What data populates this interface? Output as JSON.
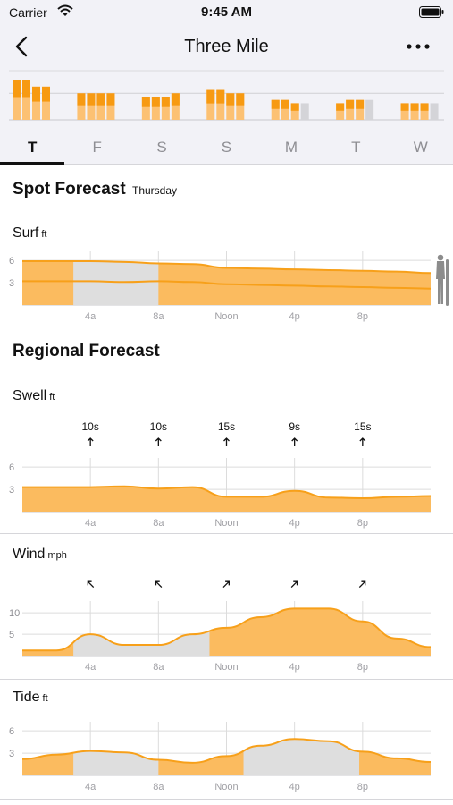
{
  "status_bar": {
    "carrier": "Carrier",
    "time": "9:45 AM"
  },
  "nav": {
    "title": "Three Mile"
  },
  "tabs": [
    "T",
    "F",
    "S",
    "S",
    "M",
    "T",
    "W"
  ],
  "active_tab": 0,
  "spot": {
    "title": "Spot Forecast",
    "day": "Thursday"
  },
  "regional": {
    "title": "Regional Forecast"
  },
  "time_labels": [
    "4a",
    "8a",
    "Noon",
    "4p",
    "8p"
  ],
  "colors": {
    "accent": "#f7a01a",
    "fill": "#fbbb5f",
    "gray": "#dedede",
    "bar_dark": "#f79a12",
    "bar_light": "#fcc173"
  },
  "surf": {
    "label": "Surf",
    "unit": "ft",
    "y_ticks": [
      "6",
      "3"
    ]
  },
  "swell": {
    "label": "Swell",
    "unit": "ft",
    "y_ticks": [
      "6",
      "3"
    ],
    "periods": [
      "10s",
      "10s",
      "15s",
      "9s",
      "15s"
    ]
  },
  "wind": {
    "label": "Wind",
    "unit": "mph",
    "y_ticks": [
      "10",
      "5"
    ]
  },
  "tide": {
    "label": "Tide",
    "unit": "ft",
    "y_ticks": [
      "6",
      "3"
    ]
  },
  "chart_data": [
    {
      "type": "bar",
      "title": "",
      "categories": [
        "T",
        "F",
        "S",
        "S",
        "M",
        "T",
        "W"
      ],
      "values_ft": [
        [
          6,
          6,
          5,
          5
        ],
        [
          4,
          4,
          4,
          4
        ],
        [
          3.5,
          3.5,
          3.5,
          4
        ],
        [
          4.5,
          4.5,
          4,
          4
        ],
        [
          3,
          3,
          2.5,
          2.5
        ],
        [
          2.5,
          3,
          3,
          3
        ],
        [
          2.5,
          2.5,
          2.5,
          2.5
        ]
      ],
      "ylim": [
        0,
        7
      ]
    },
    {
      "type": "area",
      "title": "Surf",
      "x": [
        0,
        2,
        4,
        6,
        8,
        10,
        12,
        14,
        16,
        18,
        20,
        22,
        24
      ],
      "max_ft": [
        5.9,
        5.9,
        5.9,
        5.8,
        5.6,
        5.5,
        5,
        4.9,
        4.8,
        4.7,
        4.6,
        4.5,
        4.3
      ],
      "min_ft": [
        3.2,
        3.2,
        3.2,
        3.1,
        3.2,
        3.1,
        2.8,
        2.7,
        2.6,
        2.5,
        2.4,
        2.3,
        2.2
      ],
      "ylim": [
        0,
        6.5
      ]
    },
    {
      "type": "area",
      "title": "Swell",
      "x": [
        0,
        2,
        4,
        6,
        8,
        10,
        12,
        14,
        16,
        18,
        20,
        22,
        24
      ],
      "values_ft": [
        3.3,
        3.3,
        3.3,
        3.4,
        3.1,
        3.3,
        2,
        2,
        2.8,
        1.9,
        1.8,
        2,
        2.1
      ],
      "ylim": [
        0,
        6.5
      ]
    },
    {
      "type": "area",
      "title": "Wind",
      "x": [
        0,
        2,
        4,
        6,
        8,
        10,
        12,
        14,
        16,
        18,
        20,
        22,
        24
      ],
      "values_mph": [
        1.2,
        1.2,
        5,
        2.5,
        2.5,
        5,
        6.5,
        9,
        11,
        11,
        8,
        4,
        2
      ],
      "ylim": [
        0,
        11.5
      ]
    },
    {
      "type": "area",
      "title": "Tide",
      "x": [
        0,
        2,
        4,
        6,
        8,
        10,
        12,
        14,
        16,
        18,
        20,
        22,
        24
      ],
      "values_ft": [
        2.2,
        2.8,
        3.3,
        3.1,
        2.1,
        1.7,
        2.6,
        4,
        4.9,
        4.6,
        3.2,
        2.3,
        1.8
      ],
      "ylim": [
        0,
        6.5
      ]
    }
  ]
}
